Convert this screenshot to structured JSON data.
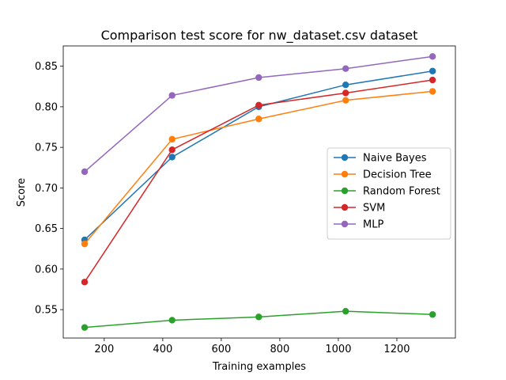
{
  "chart_data": {
    "type": "line",
    "title": "Comparison test score for nw_dataset.csv dataset",
    "xlabel": "Training examples",
    "ylabel": "Score",
    "x": [
      133,
      432,
      728,
      1025,
      1322
    ],
    "xlim": [
      60,
      1400
    ],
    "ylim": [
      0.515,
      0.875
    ],
    "xticks": [
      200,
      400,
      600,
      800,
      1000,
      1200
    ],
    "xtick_labels": [
      "200",
      "400",
      "600",
      "800",
      "1000",
      "1200"
    ],
    "yticks": [
      0.55,
      0.6,
      0.65,
      0.7,
      0.75,
      0.8,
      0.85
    ],
    "ytick_labels": [
      "0.55",
      "0.60",
      "0.65",
      "0.70",
      "0.75",
      "0.80",
      "0.85"
    ],
    "grid": false,
    "legend_position": "center-right",
    "series": [
      {
        "name": "Naive Bayes",
        "color": "#1f77b4",
        "values": [
          0.636,
          0.738,
          0.8,
          0.827,
          0.844
        ]
      },
      {
        "name": "Decision Tree",
        "color": "#ff7f0e",
        "values": [
          0.631,
          0.76,
          0.785,
          0.808,
          0.819
        ]
      },
      {
        "name": "Random Forest",
        "color": "#2ca02c",
        "values": [
          0.528,
          0.537,
          0.541,
          0.548,
          0.544
        ]
      },
      {
        "name": "SVM",
        "color": "#d62728",
        "values": [
          0.584,
          0.747,
          0.802,
          0.817,
          0.833
        ]
      },
      {
        "name": "MLP",
        "color": "#9467bd",
        "values": [
          0.72,
          0.814,
          0.836,
          0.847,
          0.862
        ]
      }
    ]
  }
}
